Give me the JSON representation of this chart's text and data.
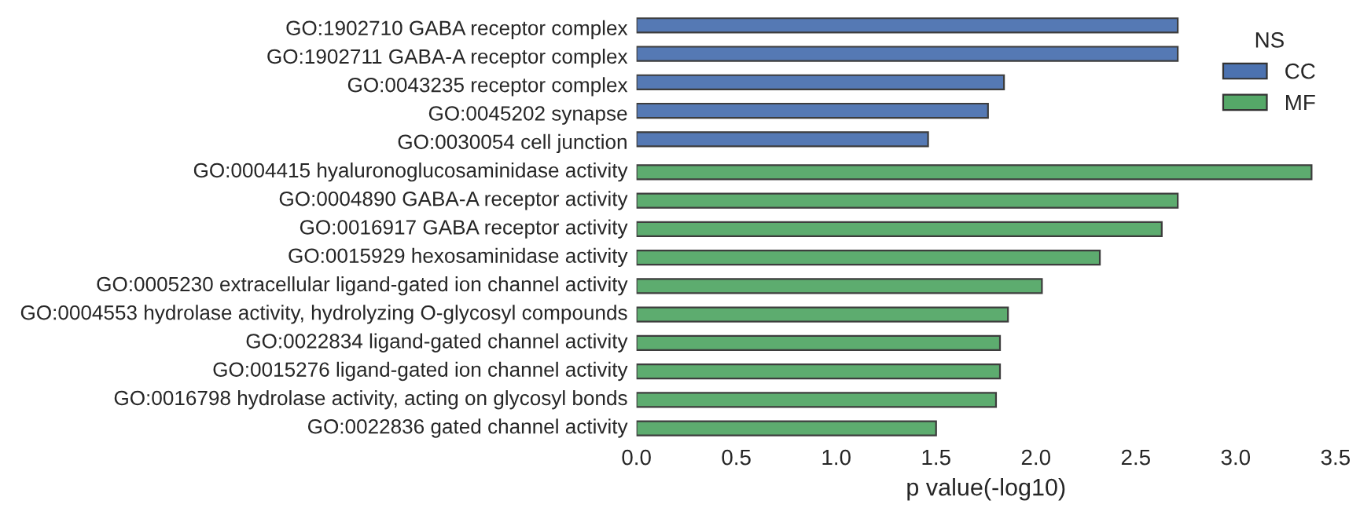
{
  "chart_data": {
    "type": "bar",
    "orientation": "horizontal",
    "xlabel": "p value(-log10)",
    "legend_title": "NS",
    "legend": "top right",
    "grid": false,
    "categories": [
      "GO:1902710 GABA receptor complex",
      "GO:1902711 GABA-A receptor complex",
      "GO:0043235 receptor complex",
      "GO:0045202 synapse",
      "GO:0030054 cell junction",
      "GO:0004415 hyaluronoglucosaminidase activity",
      "GO:0004890 GABA-A receptor activity",
      "GO:0016917 GABA receptor activity",
      "GO:0015929 hexosaminidase activity",
      "GO:0005230 extracellular ligand-gated ion channel activity",
      "GO:0004553 hydrolase activity, hydrolyzing O-glycosyl compounds",
      "GO:0022834 ligand-gated channel activity",
      "GO:0015276 ligand-gated ion channel activity",
      "GO:0016798 hydrolase activity, acting on glycosyl bonds",
      "GO:0022836 gated channel activity"
    ],
    "series": [
      {
        "name": "CC",
        "color": "#4c72b0",
        "values": [
          2.71,
          2.71,
          1.84,
          1.76,
          1.46,
          null,
          null,
          null,
          null,
          null,
          null,
          null,
          null,
          null,
          null
        ]
      },
      {
        "name": "MF",
        "color": "#55a868",
        "values": [
          null,
          null,
          null,
          null,
          null,
          3.38,
          2.71,
          2.63,
          2.32,
          2.03,
          1.86,
          1.82,
          1.82,
          1.8,
          1.5
        ]
      }
    ],
    "xlim": [
      0,
      3.5
    ],
    "xticks": [
      {
        "value": 0,
        "label": "0.0"
      },
      0.5,
      {
        "value": 1,
        "label": "1.0"
      },
      1.5,
      {
        "value": 2,
        "label": "2.0"
      },
      2.5,
      {
        "value": 3,
        "label": "3.0"
      },
      3.5
    ]
  }
}
